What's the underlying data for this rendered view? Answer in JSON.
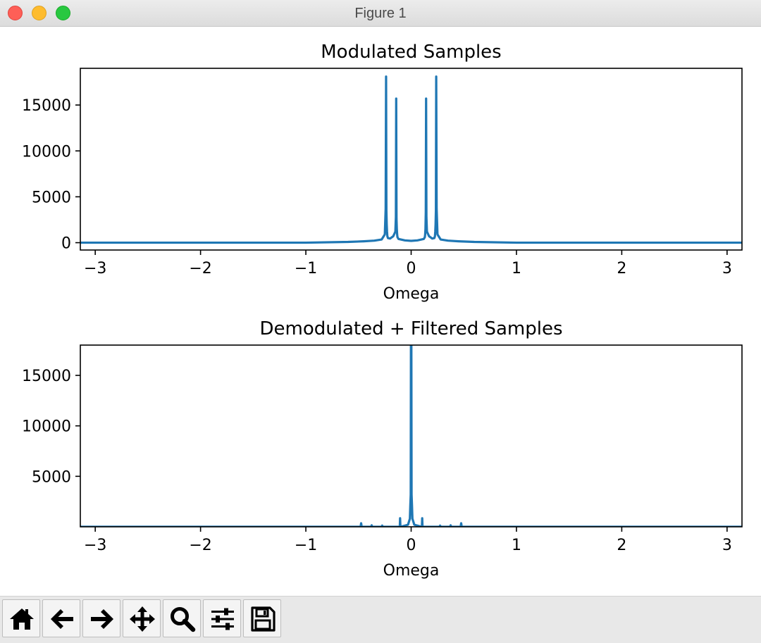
{
  "window": {
    "title": "Figure 1"
  },
  "toolbar": {
    "tools": [
      {
        "icon": "home-icon"
      },
      {
        "icon": "back-arrow-icon"
      },
      {
        "icon": "forward-arrow-icon"
      },
      {
        "icon": "pan-icon"
      },
      {
        "icon": "zoom-icon"
      },
      {
        "icon": "configure-subplots-icon"
      },
      {
        "icon": "save-icon"
      }
    ]
  },
  "colors": {
    "line": "#1f77b4"
  },
  "chart_data": [
    {
      "type": "line",
      "title": "Modulated Samples",
      "xlabel": "Omega",
      "ylabel": "",
      "xlim": [
        -3.14159,
        3.14159
      ],
      "ylim": [
        -800,
        19000
      ],
      "xticks": [
        -3,
        -2,
        -1,
        0,
        1,
        2,
        3
      ],
      "xtick_labels": [
        "−3",
        "−2",
        "−1",
        "0",
        "1",
        "2",
        "3"
      ],
      "yticks": [
        0,
        5000,
        10000,
        15000
      ],
      "ytick_labels": [
        "0",
        "5000",
        "10000",
        "15000"
      ],
      "grid": false,
      "series": [
        {
          "x": [
            -3.14159,
            -1.0,
            -0.6,
            -0.45,
            -0.35,
            -0.28,
            -0.25,
            -0.242,
            -0.238,
            -0.235,
            -0.232,
            -0.229,
            -0.226,
            -0.22,
            -0.2,
            -0.17,
            -0.15,
            -0.145,
            -0.142,
            -0.139,
            -0.136,
            -0.133,
            -0.13,
            -0.12,
            -0.06,
            0.0,
            0.06,
            0.12,
            0.13,
            0.133,
            0.136,
            0.139,
            0.142,
            0.145,
            0.15,
            0.17,
            0.2,
            0.22,
            0.226,
            0.229,
            0.232,
            0.235,
            0.238,
            0.242,
            0.25,
            0.28,
            0.35,
            0.45,
            0.6,
            1.0,
            3.14159
          ],
          "y": [
            0,
            0,
            80,
            150,
            220,
            350,
            900,
            3700,
            18100,
            3500,
            2000,
            1200,
            700,
            500,
            450,
            700,
            1200,
            2800,
            15700,
            2600,
            1500,
            900,
            600,
            400,
            250,
            200,
            250,
            400,
            600,
            900,
            1500,
            3300,
            15700,
            2800,
            1200,
            700,
            450,
            500,
            700,
            1200,
            2000,
            3500,
            18100,
            3700,
            900,
            350,
            220,
            150,
            80,
            0,
            0
          ]
        }
      ]
    },
    {
      "type": "line",
      "title": "Demodulated + Filtered Samples",
      "xlabel": "Omega",
      "ylabel": "",
      "xlim": [
        -3.14159,
        3.14159
      ],
      "ylim": [
        0,
        18000
      ],
      "xticks": [
        -3,
        -2,
        -1,
        0,
        1,
        2,
        3
      ],
      "xtick_labels": [
        "−3",
        "−2",
        "−1",
        "0",
        "1",
        "2",
        "3"
      ],
      "yticks": [
        5000,
        10000,
        15000
      ],
      "ytick_labels": [
        "5000",
        "10000",
        "15000"
      ],
      "grid": false,
      "series": [
        {
          "x": [
            -3.14159,
            -0.6,
            -0.48,
            -0.475,
            -0.47,
            -0.4,
            -0.38,
            -0.375,
            -0.37,
            -0.3,
            -0.28,
            -0.275,
            -0.27,
            -0.12,
            -0.108,
            -0.105,
            -0.102,
            -0.03,
            -0.012,
            -0.008,
            -0.004,
            -0.002,
            0.0,
            0.002,
            0.004,
            0.008,
            0.012,
            0.03,
            0.102,
            0.105,
            0.108,
            0.12,
            0.27,
            0.275,
            0.28,
            0.36,
            0.37,
            0.375,
            0.38,
            0.46,
            0.47,
            0.475,
            0.48,
            0.6,
            3.14159
          ],
          "y": [
            0,
            0,
            0,
            350,
            0,
            0,
            0,
            150,
            0,
            0,
            0,
            120,
            0,
            0,
            0,
            850,
            0,
            200,
            800,
            2100,
            3200,
            18000,
            18000,
            18000,
            3200,
            2100,
            800,
            200,
            0,
            850,
            0,
            0,
            0,
            120,
            0,
            0,
            0,
            150,
            0,
            0,
            0,
            350,
            0,
            0,
            0
          ]
        }
      ]
    }
  ]
}
